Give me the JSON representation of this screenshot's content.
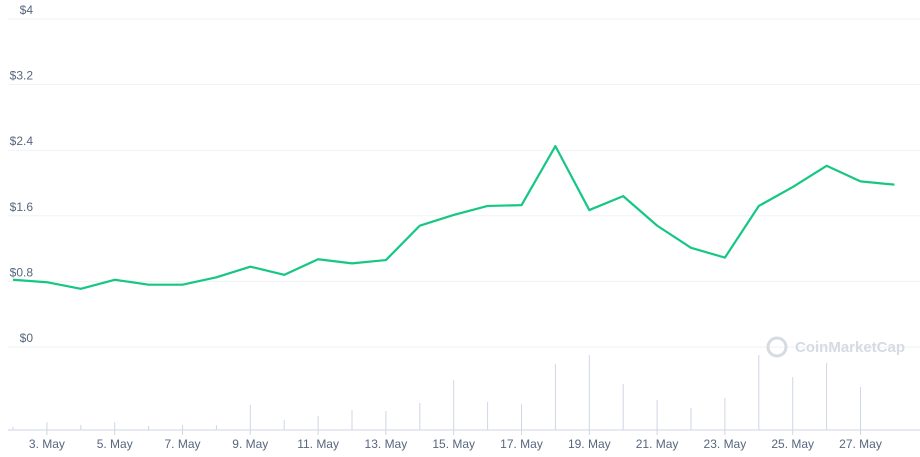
{
  "chart_data": {
    "type": "line",
    "watermark": "CoinMarketCap",
    "categories": [
      null,
      "3. May",
      null,
      "5. May",
      null,
      "7. May",
      null,
      "9. May",
      null,
      "11. May",
      null,
      "13. May",
      null,
      "15. May",
      null,
      "17. May",
      null,
      "19. May",
      null,
      "21. May",
      null,
      "23. May",
      null,
      "25. May",
      null,
      "27. May",
      null
    ],
    "series": [
      {
        "color": "#16c784",
        "values": [
          0.82,
          0.79,
          0.71,
          0.82,
          0.76,
          0.76,
          0.85,
          0.98,
          0.88,
          1.07,
          1.02,
          1.06,
          1.48,
          1.61,
          1.72,
          1.73,
          2.45,
          1.67,
          1.84,
          1.48,
          1.21,
          1.09,
          1.72,
          1.95,
          2.21,
          2.02,
          1.98
        ]
      },
      {
        "color": "#cfd6e4",
        "axis": "y2",
        "values": [
          3,
          8,
          5,
          8,
          4,
          5,
          5,
          25,
          10,
          14,
          20,
          19,
          27,
          50,
          28,
          26,
          66,
          75,
          46,
          30,
          22,
          32,
          75,
          53,
          67,
          43,
          0
        ]
      }
    ],
    "ylim": [
      0,
      4
    ],
    "yticks": [
      {
        "value": 0,
        "label": "$0"
      },
      {
        "value": 0.8,
        "label": "$0.8"
      },
      {
        "value": 1.6,
        "label": "$1.6"
      },
      {
        "value": 2.4,
        "label": "$2.4"
      },
      {
        "value": 3.2,
        "label": "$3.2"
      },
      {
        "value": 4,
        "label": "$4"
      }
    ],
    "y2lim": [
      0,
      80
    ],
    "grid": true
  }
}
